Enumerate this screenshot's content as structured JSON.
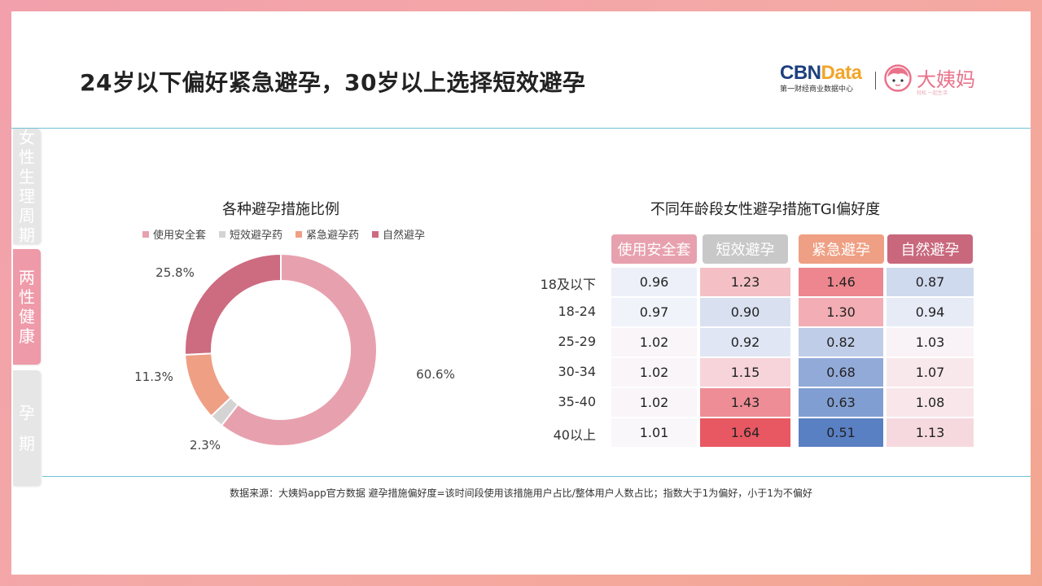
{
  "title": "24岁以下偏好紧急避孕，30岁以上选择短效避孕",
  "logos": {
    "cbn_main_a": "CBN",
    "cbn_main_b": "Data",
    "cbn_sub": "第一财经商业数据中心",
    "dym_name": "大姨妈",
    "dym_sub": "轻松 一起生活"
  },
  "side_tabs": [
    {
      "label": [
        "女",
        "性",
        "生",
        "理",
        "周",
        "期"
      ],
      "active": false
    },
    {
      "label": [
        "两",
        "性",
        "健",
        "康"
      ],
      "active": true
    },
    {
      "label": [
        "孕",
        "期"
      ],
      "active": false
    }
  ],
  "colors": {
    "condom": "#e7a1ae",
    "short": "#d5d4d4",
    "emergency": "#ef9f83",
    "natural": "#cd6b80",
    "accent_line": "#6fc2d8"
  },
  "chart_data": [
    {
      "type": "pie",
      "title": "各种避孕措施比例",
      "categories": [
        "使用安全套",
        "短效避孕药",
        "紧急避孕药",
        "自然避孕"
      ],
      "values": [
        60.6,
        2.3,
        11.3,
        25.8
      ],
      "value_labels": [
        "60.6%",
        "2.3%",
        "11.3%",
        "25.8%"
      ],
      "colors": [
        "#e7a1ae",
        "#d5d4d4",
        "#ef9f83",
        "#cd6b80"
      ],
      "legend": "top"
    },
    {
      "type": "heatmap",
      "title": "不同年龄段女性避孕措施TGI偏好度",
      "columns": [
        "使用安全套",
        "短效避孕",
        "紧急避孕",
        "自然避孕"
      ],
      "column_colors": [
        "#e7a1ae",
        "#c9c8c8",
        "#ef9f83",
        "#c9687d"
      ],
      "rows": [
        "18及以下",
        "18-24",
        "25-29",
        "30-34",
        "35-40",
        "40以上"
      ],
      "values": [
        [
          0.96,
          1.23,
          1.46,
          0.87
        ],
        [
          0.97,
          0.9,
          1.3,
          0.94
        ],
        [
          1.02,
          0.92,
          0.82,
          1.03
        ],
        [
          1.02,
          1.15,
          0.68,
          1.07
        ],
        [
          1.02,
          1.43,
          0.63,
          1.08
        ],
        [
          1.01,
          1.64,
          0.51,
          1.13
        ]
      ],
      "labels": [
        [
          "0.96",
          "1.23",
          "1.46",
          "0.87"
        ],
        [
          "0.97",
          "0.90",
          "1.30",
          "0.94"
        ],
        [
          "1.02",
          "0.92",
          "0.82",
          "1.03"
        ],
        [
          "1.02",
          "1.15",
          "0.68",
          "1.07"
        ],
        [
          "1.02",
          "1.43",
          "0.63",
          "1.08"
        ],
        [
          "1.01",
          "1.64",
          "0.51",
          "1.13"
        ]
      ]
    }
  ],
  "source_note": "数据来源：大姨妈app官方数据  避孕措施偏好度=该时间段使用该措施用户占比/整体用户人数占比；指数大于1为偏好，小于1为不偏好"
}
